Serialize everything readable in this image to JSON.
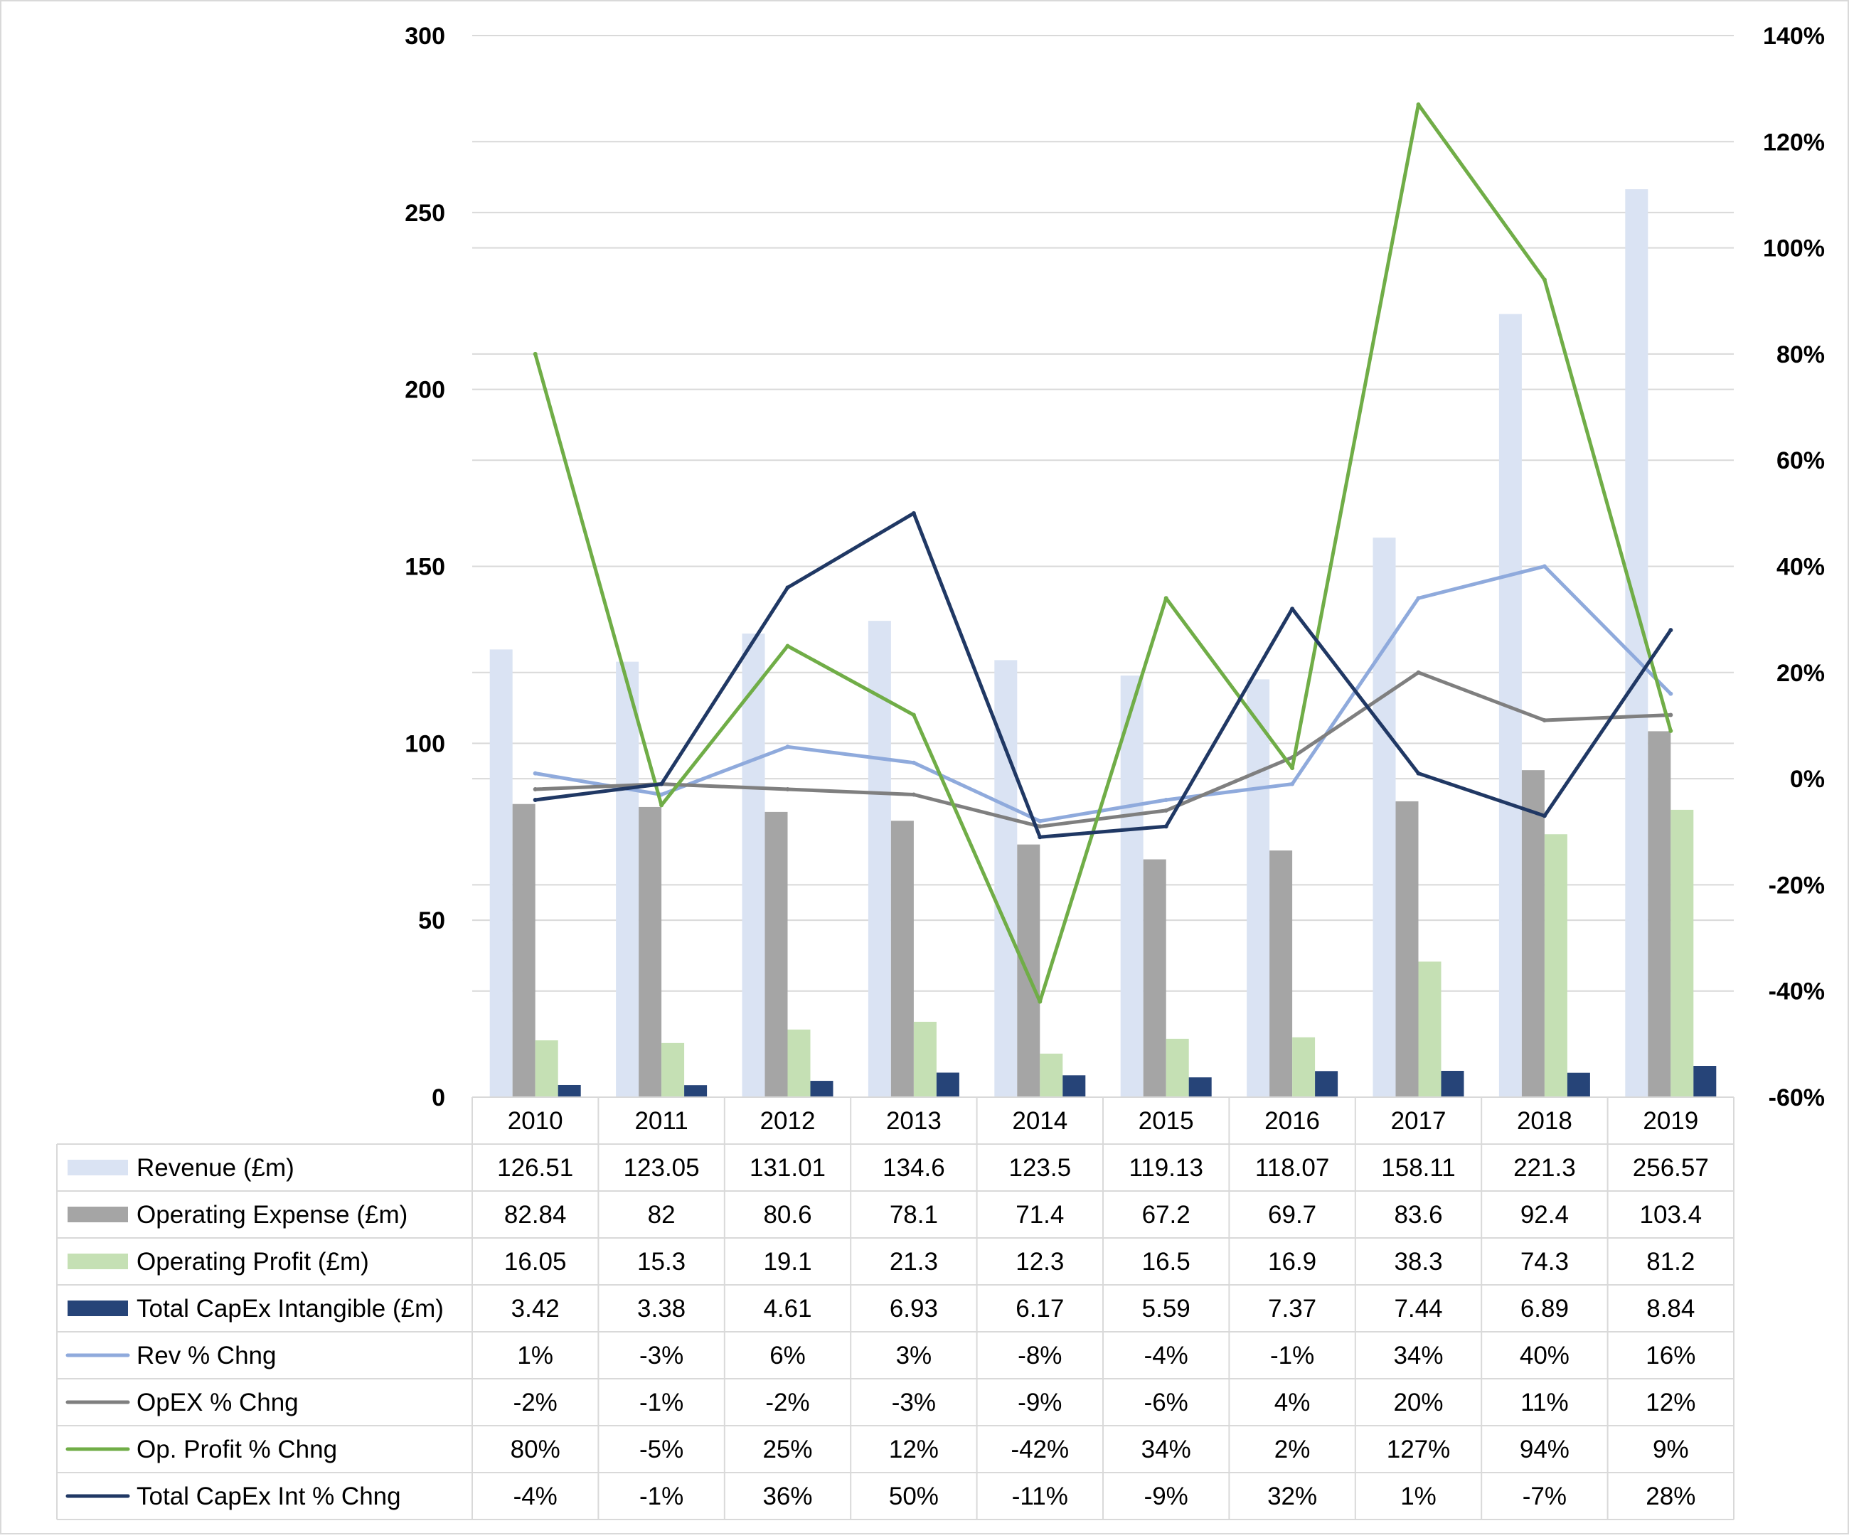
{
  "chart_data": {
    "type": "bar",
    "categories": [
      "2010",
      "2011",
      "2012",
      "2013",
      "2014",
      "2015",
      "2016",
      "2017",
      "2018",
      "2019"
    ],
    "y_left": {
      "min": 0,
      "max": 300,
      "ticks": [
        0,
        50,
        100,
        150,
        200,
        250,
        300
      ],
      "tick_labels": [
        "0",
        "50",
        "100",
        "150",
        "200",
        "250",
        "300"
      ]
    },
    "y_right": {
      "min": -60,
      "max": 140,
      "ticks": [
        -60,
        -40,
        -20,
        0,
        20,
        40,
        60,
        80,
        100,
        120,
        140
      ],
      "tick_labels": [
        "-60%",
        "-40%",
        "-20%",
        "0%",
        "20%",
        "40%",
        "60%",
        "80%",
        "100%",
        "120%",
        "140%"
      ]
    },
    "grid": true,
    "legend": "data-table-below",
    "bar_series": [
      {
        "name": "Revenue (£m)",
        "color": "#dae3f3",
        "values": [
          126.51,
          123.05,
          131.01,
          134.6,
          123.5,
          119.13,
          118.07,
          158.11,
          221.3,
          256.57
        ],
        "labels": [
          "126.51",
          "123.05",
          "131.01",
          "134.6",
          "123.5",
          "119.13",
          "118.07",
          "158.11",
          "221.3",
          "256.57"
        ]
      },
      {
        "name": "Operating Expense (£m)",
        "color": "#a5a5a5",
        "values": [
          82.84,
          82,
          80.6,
          78.1,
          71.4,
          67.2,
          69.7,
          83.6,
          92.4,
          103.4
        ],
        "labels": [
          "82.84",
          "82",
          "80.6",
          "78.1",
          "71.4",
          "67.2",
          "69.7",
          "83.6",
          "92.4",
          "103.4"
        ]
      },
      {
        "name": "Operating Profit (£m)",
        "color": "#c5e0b4",
        "values": [
          16.05,
          15.3,
          19.1,
          21.3,
          12.3,
          16.5,
          16.9,
          38.3,
          74.3,
          81.2
        ],
        "labels": [
          "16.05",
          "15.3",
          "19.1",
          "21.3",
          "12.3",
          "16.5",
          "16.9",
          "38.3",
          "74.3",
          "81.2"
        ]
      },
      {
        "name": "Total CapEx Intangible (£m)",
        "color": "#264478",
        "values": [
          3.42,
          3.38,
          4.61,
          6.93,
          6.17,
          5.59,
          7.37,
          7.44,
          6.89,
          8.84
        ],
        "labels": [
          "3.42",
          "3.38",
          "4.61",
          "6.93",
          "6.17",
          "5.59",
          "7.37",
          "7.44",
          "6.89",
          "8.84"
        ]
      }
    ],
    "line_series": [
      {
        "name": "Rev % Chng",
        "color": "#8faadc",
        "values": [
          1,
          -3,
          6,
          3,
          -8,
          -4,
          -1,
          34,
          40,
          16
        ],
        "labels": [
          "1%",
          "-3%",
          "6%",
          "3%",
          "-8%",
          "-4%",
          "-1%",
          "34%",
          "40%",
          "16%"
        ]
      },
      {
        "name": "OpEX % Chng",
        "color": "#7f7f7f",
        "values": [
          -2,
          -1,
          -2,
          -3,
          -9,
          -6,
          4,
          20,
          11,
          12
        ],
        "labels": [
          "-2%",
          "-1%",
          "-2%",
          "-3%",
          "-9%",
          "-6%",
          "4%",
          "20%",
          "11%",
          "12%"
        ]
      },
      {
        "name": "Op. Profit % Chng",
        "color": "#70ad47",
        "values": [
          80,
          -5,
          25,
          12,
          -42,
          34,
          2,
          127,
          94,
          9
        ],
        "labels": [
          "80%",
          "-5%",
          "25%",
          "12%",
          "-42%",
          "34%",
          "2%",
          "127%",
          "94%",
          "9%"
        ]
      },
      {
        "name": "Total CapEx Int % Chng",
        "color": "#203864",
        "values": [
          -4,
          -1,
          36,
          50,
          -11,
          -9,
          32,
          1,
          -7,
          28
        ],
        "labels": [
          "-4%",
          "-1%",
          "36%",
          "50%",
          "-11%",
          "-9%",
          "32%",
          "1%",
          "-7%",
          "28%"
        ]
      }
    ]
  }
}
